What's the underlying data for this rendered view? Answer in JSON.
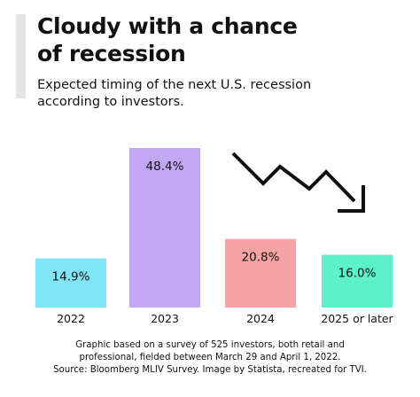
{
  "header": {
    "title_line1": "Cloudy with a chance",
    "title_line2": "of recession",
    "subtitle_line1": "Expected timing of the next U.S. recession",
    "subtitle_line2": "according to investors."
  },
  "chart_data": {
    "type": "bar",
    "categories": [
      "2022",
      "2023",
      "2024",
      "2025 or later"
    ],
    "values": [
      14.9,
      48.4,
      20.8,
      16.0
    ],
    "value_labels": [
      "14.9%",
      "48.4%",
      "20.8%",
      "16.0%"
    ],
    "colors": [
      "#80e6f7",
      "#c2a8f2",
      "#f7a3a6",
      "#5cf0cb"
    ],
    "title": "Cloudy with a chance of recession",
    "subtitle": "Expected timing of the next U.S. recession according to investors.",
    "xlabel": "",
    "ylabel": "",
    "ylim": [
      0,
      48.4
    ],
    "grid": false,
    "legend": "none",
    "annotation_icon": "down-trend-arrow-icon"
  },
  "footnote": {
    "line1": "Graphic based on a survey of 525 investors, both retail and",
    "line2": "professional, fielded between March 29 and April 1, 2022.",
    "line3": "Source: Bloomberg MLIV Survey. Image by Statista, recreated for TVI."
  }
}
